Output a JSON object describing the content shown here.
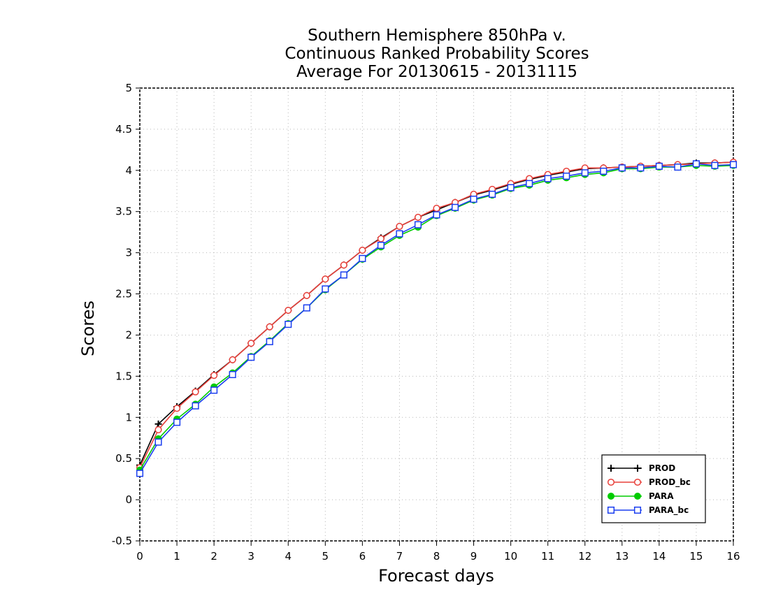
{
  "chart_data": {
    "type": "line",
    "title_lines": [
      "Southern Hemisphere 850hPa v.",
      "Continuous Ranked Probability Scores",
      "Average For 20130615 - 20131115"
    ],
    "xlabel": "Forecast days",
    "ylabel": "Scores",
    "xlim": [
      0,
      16
    ],
    "ylim": [
      -0.5,
      5
    ],
    "xticks": [
      "0",
      "1",
      "2",
      "3",
      "4",
      "5",
      "6",
      "7",
      "8",
      "9",
      "10",
      "11",
      "12",
      "13",
      "14",
      "15",
      "16"
    ],
    "yticks": [
      "-0.5",
      "0",
      "0.5",
      "1",
      "1.5",
      "2",
      "2.5",
      "3",
      "3.5",
      "4",
      "4.5",
      "5"
    ],
    "grid": true,
    "legend_position": "bottom-right",
    "x": [
      0,
      0.5,
      1,
      1.5,
      2,
      2.5,
      3,
      3.5,
      4,
      4.5,
      5,
      5.5,
      6,
      6.5,
      7,
      7.5,
      8,
      8.5,
      9,
      9.5,
      10,
      10.5,
      11,
      11.5,
      12,
      12.5,
      13,
      13.5,
      14,
      14.5,
      15,
      15.5,
      16
    ],
    "series": [
      {
        "name": "PROD",
        "color": "#000000",
        "marker": "plus",
        "values": [
          0.42,
          0.92,
          1.13,
          1.32,
          1.52,
          1.7,
          1.9,
          2.1,
          2.3,
          2.48,
          2.68,
          2.85,
          3.03,
          3.18,
          3.32,
          3.43,
          3.52,
          3.61,
          3.7,
          3.76,
          3.83,
          3.89,
          3.94,
          3.98,
          4.02,
          4.03,
          4.04,
          4.05,
          4.06,
          4.07,
          4.09,
          4.09,
          4.1
        ]
      },
      {
        "name": "PROD_bc",
        "color": "#e8403a",
        "marker": "circle-open",
        "values": [
          0.39,
          0.85,
          1.11,
          1.31,
          1.51,
          1.7,
          1.9,
          2.1,
          2.3,
          2.48,
          2.68,
          2.85,
          3.03,
          3.17,
          3.32,
          3.43,
          3.54,
          3.61,
          3.71,
          3.77,
          3.84,
          3.9,
          3.95,
          3.99,
          4.03,
          4.03,
          4.04,
          4.05,
          4.06,
          4.07,
          4.08,
          4.09,
          4.1
        ]
      },
      {
        "name": "PARA",
        "color": "#00cc00",
        "marker": "circle-filled",
        "values": [
          0.36,
          0.74,
          0.98,
          1.16,
          1.37,
          1.54,
          1.74,
          1.93,
          2.14,
          2.33,
          2.55,
          2.73,
          2.92,
          3.07,
          3.21,
          3.31,
          3.45,
          3.54,
          3.64,
          3.7,
          3.78,
          3.82,
          3.88,
          3.91,
          3.95,
          3.97,
          4.02,
          4.02,
          4.04,
          4.04,
          4.06,
          4.05,
          4.06
        ]
      },
      {
        "name": "PARA_bc",
        "color": "#1a3ef0",
        "marker": "square-open",
        "values": [
          0.32,
          0.7,
          0.94,
          1.14,
          1.33,
          1.52,
          1.73,
          1.92,
          2.13,
          2.33,
          2.56,
          2.73,
          2.93,
          3.09,
          3.23,
          3.34,
          3.46,
          3.55,
          3.65,
          3.71,
          3.79,
          3.84,
          3.9,
          3.93,
          3.97,
          3.99,
          4.03,
          4.03,
          4.05,
          4.04,
          4.08,
          4.06,
          4.07
        ]
      }
    ]
  }
}
